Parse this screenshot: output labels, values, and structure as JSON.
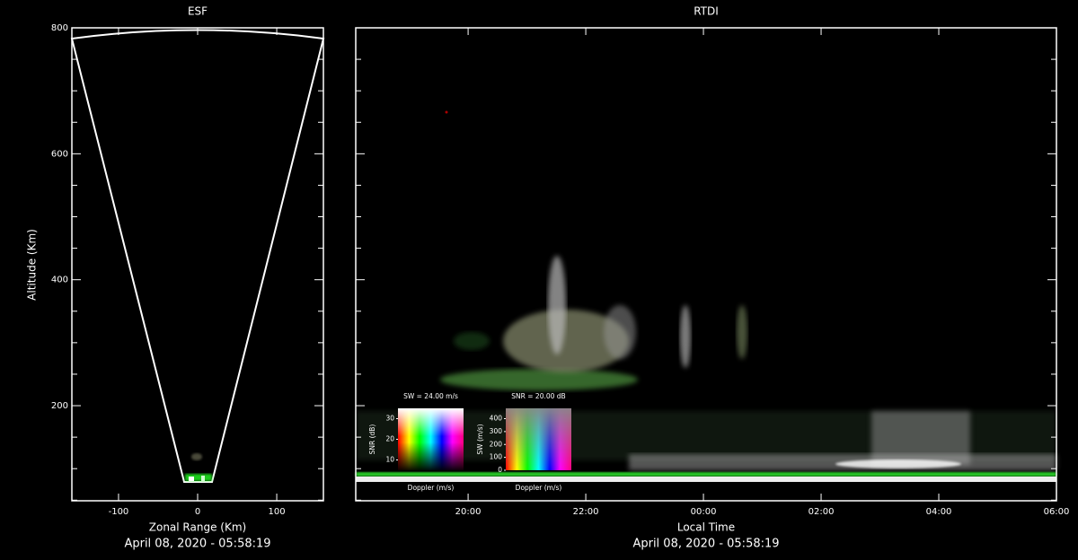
{
  "chart_data": [
    {
      "type": "esf",
      "title": "ESF",
      "xlabel": "Zonal Range (Km)",
      "ylabel": "Altitude (Km)",
      "xlim": [
        -159,
        159
      ],
      "ylim": [
        49,
        800
      ],
      "xticks": [
        -100,
        0,
        100
      ],
      "yticks": [
        200,
        400,
        600,
        800
      ],
      "timestamp": "April 08, 2020 - 05:58:19"
    },
    {
      "type": "rtdi",
      "title": "RTDI",
      "xlabel": "Local Time",
      "xlim": [
        18.09,
        30
      ],
      "ylim": [
        49,
        800
      ],
      "xticks": [
        {
          "value": 20,
          "label": "20:00"
        },
        {
          "value": 22,
          "label": "22:00"
        },
        {
          "value": 24,
          "label": "00:00"
        },
        {
          "value": 26,
          "label": "02:00"
        },
        {
          "value": 28,
          "label": "04:00"
        },
        {
          "value": 30,
          "label": "06:00"
        }
      ],
      "yticks": [
        200,
        400,
        600,
        800
      ],
      "timestamp": "April 08, 2020 - 05:58:19",
      "insets": [
        {
          "title": "SW = 24.00 m/s",
          "xlabel": "Doppler (m/s)",
          "ylabel": "SNR (dB)",
          "ylim": [
            5,
            35
          ],
          "yticks": [
            10,
            20,
            30
          ]
        },
        {
          "title": "SNR = 20.00 dB",
          "xlabel": "Doppler (m/s)",
          "ylabel": "SW (m/s)",
          "ylim": [
            0,
            480
          ],
          "yticks": [
            0,
            100,
            200,
            300,
            400
          ]
        }
      ]
    }
  ]
}
